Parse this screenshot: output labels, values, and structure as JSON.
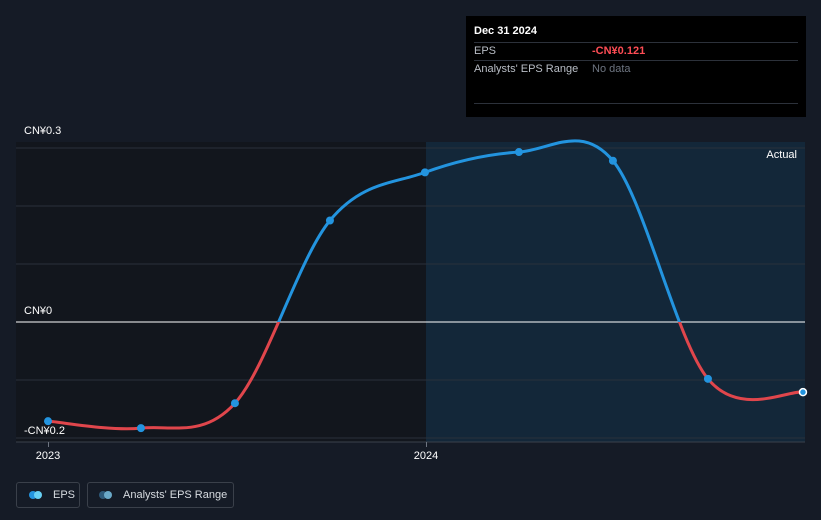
{
  "chart_data": {
    "type": "line",
    "title": "",
    "xlabel": "",
    "ylabel": "",
    "x_ticks": [
      "2023",
      "2024"
    ],
    "y_ticks": [
      {
        "value": 0.3,
        "label": "CN¥0.3"
      },
      {
        "value": 0,
        "label": "CN¥0"
      },
      {
        "value": -0.2,
        "label": "-CN¥0.2"
      }
    ],
    "ylim": [
      -0.2,
      0.3
    ],
    "xlim": [
      "2022-12-31",
      "2025-01-31"
    ],
    "forecast_start": "2024-01-01",
    "actual_label": "Actual",
    "grid": true,
    "legend_position": "bottom-left",
    "series": [
      {
        "name": "EPS",
        "color_positive": "#2394df",
        "color_negative": "#e0464c",
        "points": [
          {
            "x": "2022-12-31",
            "y": -0.171
          },
          {
            "x": "2023-03-31",
            "y": -0.183
          },
          {
            "x": "2023-06-30",
            "y": -0.14
          },
          {
            "x": "2023-09-30",
            "y": 0.175
          },
          {
            "x": "2023-12-31",
            "y": 0.258
          },
          {
            "x": "2024-03-31",
            "y": 0.293
          },
          {
            "x": "2024-06-30",
            "y": 0.278
          },
          {
            "x": "2024-09-30",
            "y": -0.098
          },
          {
            "x": "2024-12-31",
            "y": -0.121
          }
        ]
      }
    ]
  },
  "tooltip": {
    "date": "Dec 31 2024",
    "eps_label": "EPS",
    "eps_value": "-CN¥0.121",
    "range_label": "Analysts' EPS Range",
    "range_value": "No data"
  },
  "legend": {
    "eps_label": "EPS",
    "range_label": "Analysts' EPS Range",
    "eps_colors": [
      "#2394df",
      "#67d0f4"
    ],
    "range_colors": [
      "#2e5a7a",
      "#6aa9c8"
    ]
  }
}
